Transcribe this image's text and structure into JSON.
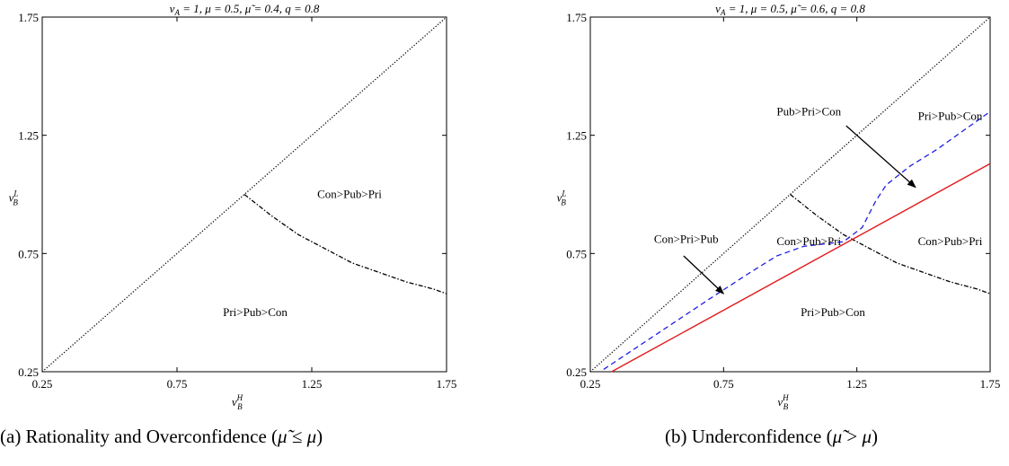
{
  "chart_data": [
    {
      "type": "line",
      "panel": "a",
      "title": "vA = 1, μ = 0.5, μ̃ = 0.4, q = 0.8",
      "xlabel": "vBH",
      "ylabel": "vBL",
      "xlim": [
        0.25,
        1.75
      ],
      "ylim": [
        0.25,
        1.75
      ],
      "xticks": [
        "0.25",
        "0.75",
        "1.25",
        "1.75"
      ],
      "yticks": [
        "0.25",
        "0.75",
        "1.25",
        "1.75"
      ],
      "grid": false,
      "series": [
        {
          "style": "dotted",
          "color": "#000000",
          "x": [
            0.25,
            1.75
          ],
          "y": [
            0.25,
            1.75
          ]
        },
        {
          "style": "dashdot",
          "color": "#000000",
          "x": [
            1.0,
            1.1,
            1.2,
            1.3,
            1.4,
            1.5,
            1.6,
            1.7,
            1.75
          ],
          "y": [
            1.0,
            0.91,
            0.83,
            0.77,
            0.71,
            0.67,
            0.63,
            0.6,
            0.58
          ]
        }
      ],
      "annotations": [
        {
          "text": "Con>Pub>Pri",
          "x": 1.39,
          "y": 1.0
        },
        {
          "text": "Pri>Pub>Con",
          "x": 1.04,
          "y": 0.5
        }
      ],
      "caption": "(a) Rationality and Overconfidence (μ̃ ≤ μ)"
    },
    {
      "type": "line",
      "panel": "b",
      "title": "vA = 1, μ = 0.5, μ̃ = 0.6, q = 0.8",
      "xlabel": "vBH",
      "ylabel": "vBL",
      "xlim": [
        0.25,
        1.75
      ],
      "ylim": [
        0.25,
        1.75
      ],
      "xticks": [
        "0.25",
        "0.75",
        "1.25",
        "1.75"
      ],
      "yticks": [
        "0.25",
        "0.75",
        "1.25",
        "1.75"
      ],
      "grid": false,
      "series": [
        {
          "style": "dotted",
          "color": "#000000",
          "x": [
            0.25,
            1.75
          ],
          "y": [
            0.25,
            1.75
          ]
        },
        {
          "style": "dashdot",
          "color": "#000000",
          "x": [
            1.0,
            1.1,
            1.2,
            1.3,
            1.4,
            1.5,
            1.6,
            1.7,
            1.75
          ],
          "y": [
            1.0,
            0.91,
            0.83,
            0.77,
            0.71,
            0.67,
            0.63,
            0.6,
            0.58
          ]
        },
        {
          "style": "dashed",
          "color": "#1f1fe0",
          "x": [
            0.3,
            0.5,
            0.7,
            0.85,
            0.95,
            1.05,
            1.2,
            1.27,
            1.32,
            1.36,
            1.45,
            1.55,
            1.65,
            1.75
          ],
          "y": [
            0.26,
            0.41,
            0.56,
            0.67,
            0.74,
            0.78,
            0.8,
            0.86,
            0.97,
            1.04,
            1.12,
            1.19,
            1.27,
            1.35
          ]
        },
        {
          "style": "solid",
          "color": "#e31a1c",
          "x": [
            0.33,
            1.75
          ],
          "y": [
            0.25,
            1.13
          ]
        }
      ],
      "annotations": [
        {
          "text": "Pub>Pri>Con",
          "x": 1.07,
          "y": 1.35
        },
        {
          "text": "Pri>Pub>Con",
          "x": 1.6,
          "y": 1.33
        },
        {
          "text": "Con>Pri>Pub",
          "x": 0.61,
          "y": 0.81
        },
        {
          "text": "Con>Pub>Pri",
          "x": 1.07,
          "y": 0.8
        },
        {
          "text": "Con>Pub>Pri",
          "x": 1.6,
          "y": 0.8
        },
        {
          "text": "Pri>Pub>Con",
          "x": 1.16,
          "y": 0.5
        }
      ],
      "arrows": [
        {
          "from": [
            1.21,
            1.29
          ],
          "to": [
            1.47,
            1.03
          ]
        },
        {
          "from": [
            0.6,
            0.74
          ],
          "to": [
            0.75,
            0.58
          ]
        }
      ],
      "caption": "(b) Underconfidence (μ̃ > μ)"
    }
  ]
}
